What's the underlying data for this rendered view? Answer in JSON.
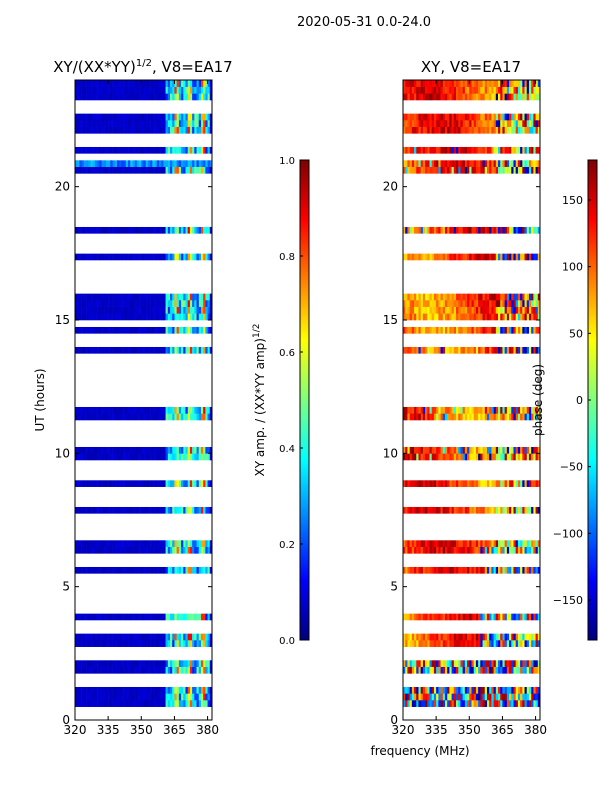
{
  "figure": {
    "suptitle": "2020-05-31 0.0-24.0",
    "xlabel": "frequency (MHz)"
  },
  "colors": {
    "jet": [
      "#00007f",
      "#0000ff",
      "#007fff",
      "#00ffff",
      "#7fff7f",
      "#ffff00",
      "#ff7f00",
      "#ff0000",
      "#7f0000"
    ],
    "gap": "#ffffff"
  },
  "chart_data": [
    {
      "type": "heatmap",
      "title_base": "XY/(XX*YY)",
      "title_exp": "1/2",
      "title_suffix": ", V8=EA17",
      "xlabel": "",
      "ylabel": "UT (hours)",
      "xlim": [
        320,
        382
      ],
      "ylim": [
        0,
        24
      ],
      "xticks": [
        320,
        335,
        350,
        365,
        380
      ],
      "yticks": [
        0,
        5,
        10,
        15,
        20
      ],
      "colorbar": {
        "label_base": "XY amp. / (XX*YY amp)",
        "label_exp": "1/2",
        "range": [
          0.0,
          1.0
        ],
        "ticks": [
          "0.0",
          "0.2",
          "0.4",
          "0.6",
          "0.8",
          "1.0"
        ]
      },
      "description": "Normalized cross-correlation amplitude, mostly low (~0.05) except channels 361-381 MHz"
    },
    {
      "type": "heatmap",
      "title_base": "XY, V8=EA17",
      "title_exp": "",
      "title_suffix": "",
      "xlabel": "frequency (MHz)",
      "ylabel": "",
      "xlim": [
        320,
        382
      ],
      "ylim": [
        0,
        24
      ],
      "xticks": [
        320,
        335,
        350,
        365,
        380
      ],
      "yticks": [
        0,
        5,
        10,
        15,
        20
      ],
      "colorbar": {
        "label": "phase (deg)",
        "range": [
          -180,
          180
        ],
        "ticks": [
          "150",
          "100",
          "50",
          "0",
          "−50",
          "−100",
          "−150"
        ]
      },
      "description": "Cross-correlation phase, predominantly 80-150 deg with scattered wrapping"
    }
  ],
  "flagged_ut_hours": [
    0.3,
    1.5,
    2.45,
    2.55,
    3.35,
    3.6,
    4.3,
    4.7,
    5.0,
    5.2,
    5.9,
    6.1,
    6.9,
    7.1,
    7.5,
    8.3,
    8.45,
    9.3,
    9.55,
    10.4,
    10.65,
    10.75,
    11.1,
    11.9,
    12.2,
    12.8,
    13.3,
    13.6,
    14.3,
    14.9,
    16.2,
    16.45,
    17.0,
    17.6,
    17.95,
    18.6,
    18.75,
    19.2,
    19.65,
    19.85,
    20.05,
    20.25,
    20.4,
    21.1,
    21.7,
    23.0
  ]
}
